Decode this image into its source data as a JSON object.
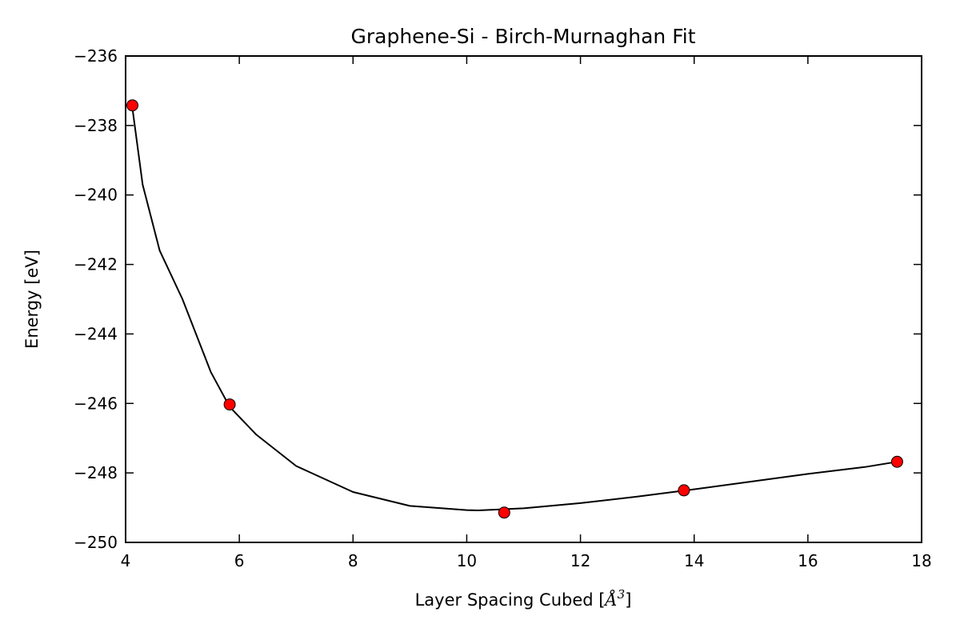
{
  "chart_data": {
    "type": "scatter",
    "title": "Graphene-Si - Birch-Murnaghan Fit",
    "xlabel": "Layer Spacing Cubed [",
    "xlabel_unit": "Å",
    "xlabel_power": "3",
    "xlabel_close": "]",
    "ylabel": "Energy [eV]",
    "xlim": [
      4,
      18
    ],
    "ylim": [
      -250,
      -236
    ],
    "xticks": [
      4,
      6,
      8,
      10,
      12,
      14,
      16,
      18
    ],
    "yticks": [
      -236,
      -238,
      -240,
      -242,
      -244,
      -246,
      -248,
      -250
    ],
    "grid": false,
    "series": [
      {
        "type": "scatter",
        "color": "#ff0000",
        "x": [
          4.12,
          5.83,
          10.66,
          13.82,
          17.57
        ],
        "y": [
          -237.42,
          -246.03,
          -249.14,
          -248.5,
          -247.68
        ]
      },
      {
        "type": "line",
        "color": "#000000",
        "x": [
          4.12,
          4.3,
          4.6,
          5.0,
          5.5,
          5.83,
          6.3,
          7.0,
          8.0,
          9.0,
          10.0,
          10.2,
          11.0,
          12.0,
          13.0,
          14.0,
          15.0,
          16.0,
          17.0,
          17.57
        ],
        "y": [
          -237.5,
          -239.7,
          -241.6,
          -243.0,
          -245.1,
          -246.1,
          -246.9,
          -247.8,
          -248.55,
          -248.95,
          -249.07,
          -249.08,
          -249.02,
          -248.87,
          -248.68,
          -248.47,
          -248.25,
          -248.03,
          -247.83,
          -247.68
        ]
      }
    ]
  }
}
